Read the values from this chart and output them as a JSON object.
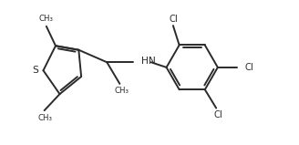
{
  "background": "#ffffff",
  "line_color": "#2a2a2a",
  "line_width": 1.4,
  "font_size": 7.2,
  "font_color": "#2a2a2a",
  "figsize": [
    3.28,
    1.59
  ],
  "dpi": 100,
  "xlim": [
    -0.5,
    5.2
  ],
  "ylim": [
    -1.4,
    1.4
  ]
}
